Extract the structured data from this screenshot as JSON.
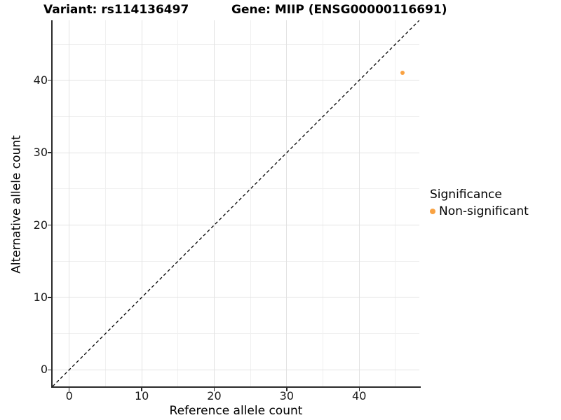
{
  "titles": {
    "variant": "Variant: rs114136497",
    "gene": "Gene: MIIP (ENSG00000116691)"
  },
  "legend": {
    "title": "Significance",
    "items": [
      {
        "label": "Non-significant",
        "color": "#F9A242"
      }
    ]
  },
  "colors": {
    "grid_major": "#e2e2e2",
    "grid_minor": "#f0f0f0",
    "axis_line": "#2b2b2b",
    "identity_line": "#000000",
    "point": "#F9A242",
    "background": "#ffffff"
  },
  "chart_data": {
    "type": "scatter",
    "title": "Variant: rs114136497   Gene: MIIP (ENSG00000116691)",
    "xlabel": "Reference allele count",
    "ylabel": "Alternative allele count",
    "xlim": [
      -2.3,
      48.3
    ],
    "ylim": [
      -2.3,
      48.3
    ],
    "x_ticks": [
      0,
      10,
      20,
      30,
      40
    ],
    "y_ticks": [
      0,
      10,
      20,
      30,
      40
    ],
    "x_minor_ticks": [
      5,
      15,
      25,
      35,
      45
    ],
    "y_minor_ticks": [
      5,
      15,
      25,
      35,
      45
    ],
    "grid": true,
    "legend_position": "right",
    "identity_line": {
      "slope": 1,
      "intercept": 0,
      "style": "dashed"
    },
    "series": [
      {
        "name": "Non-significant",
        "color": "#F9A242",
        "points": [
          {
            "x": 46,
            "y": 41
          }
        ]
      }
    ]
  }
}
